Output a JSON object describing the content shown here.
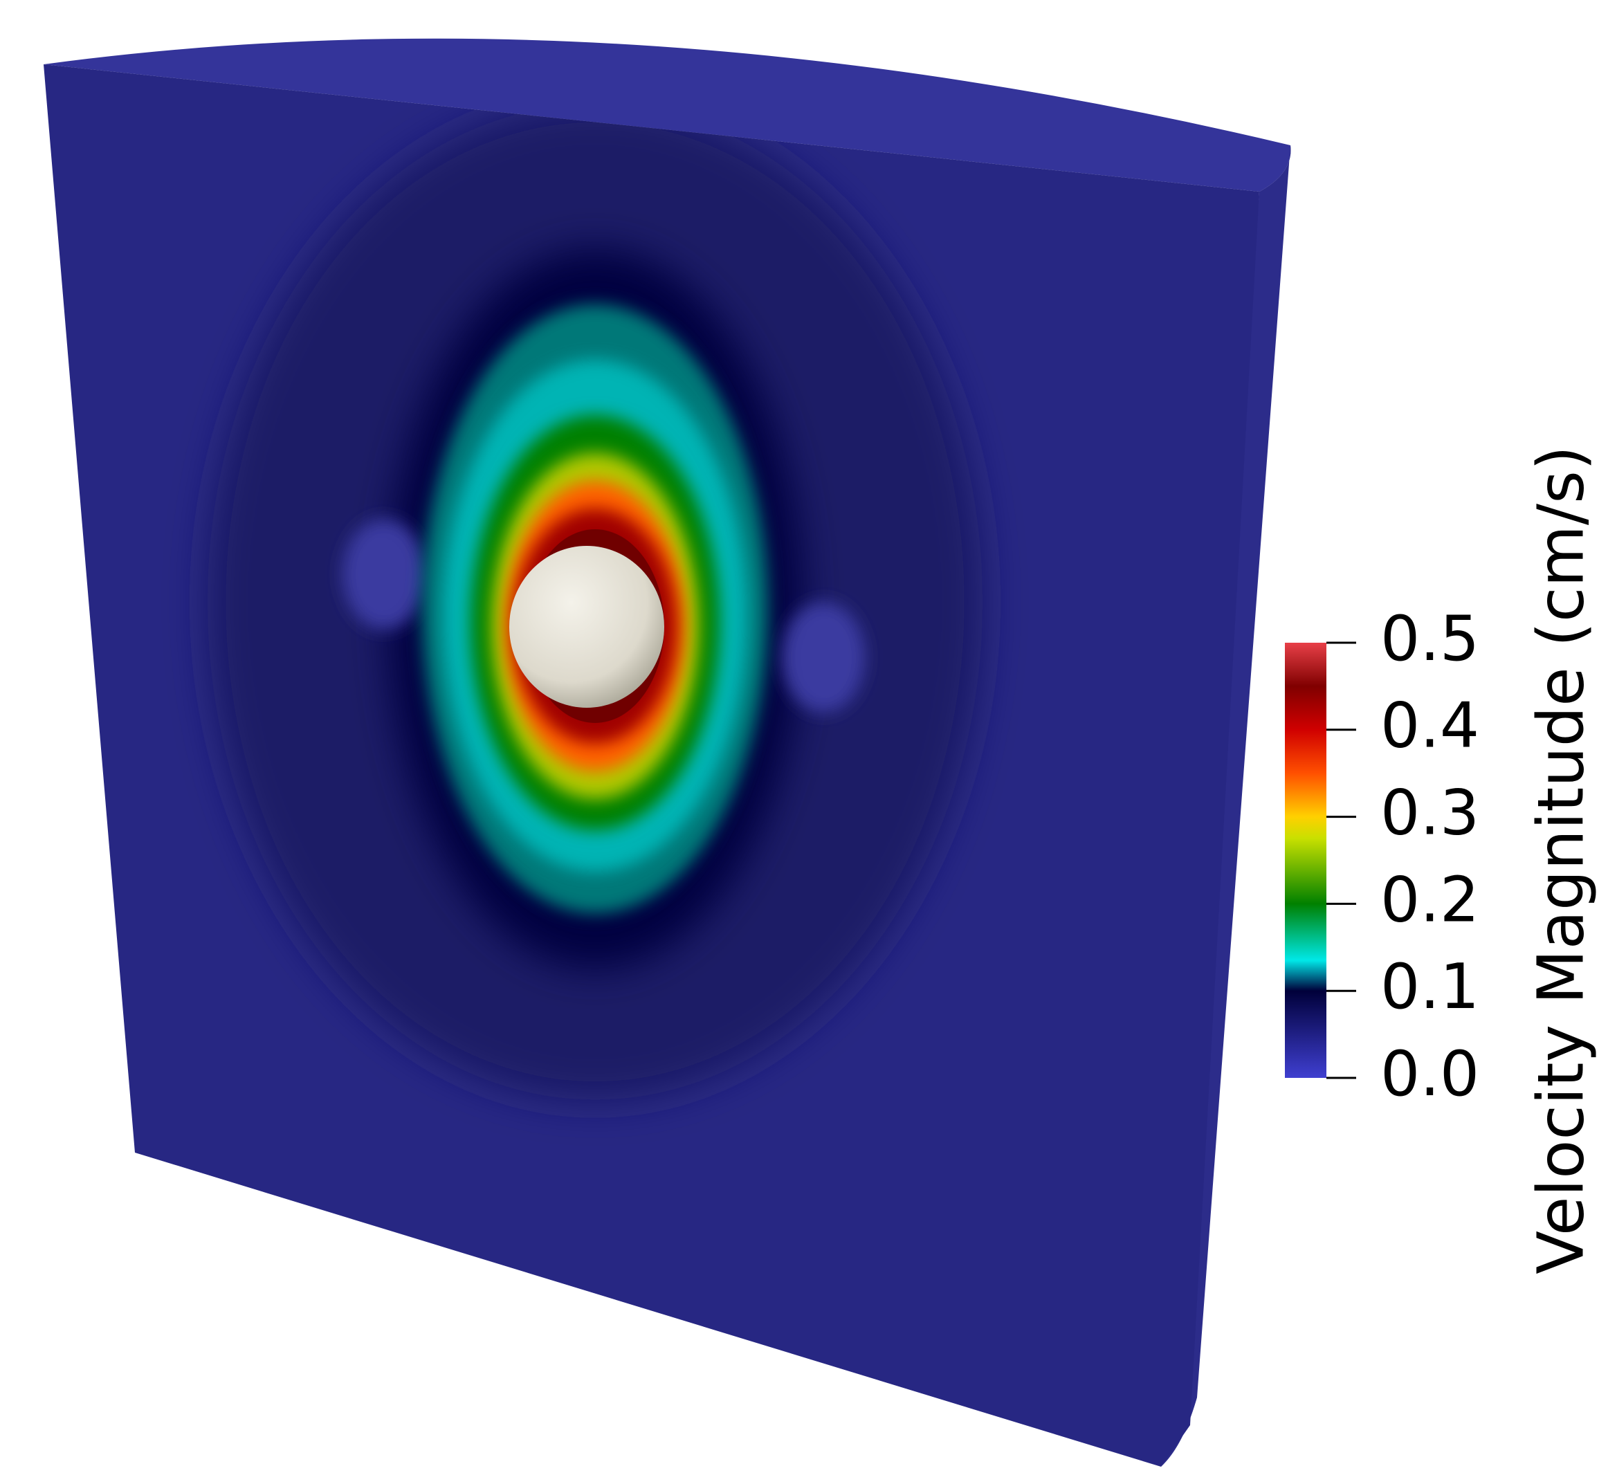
{
  "colorbar": {
    "title": "Velocity Magnitude (cm/s)",
    "range": [
      0,
      0.5
    ],
    "ticks": [
      {
        "value": 0,
        "label": "0.0"
      },
      {
        "value": 0.1,
        "label": "0.1"
      },
      {
        "value": 0.2,
        "label": "0.2"
      },
      {
        "value": 0.3,
        "label": "0.3"
      },
      {
        "value": 0.4,
        "label": "0.4"
      },
      {
        "value": 0.5,
        "label": "0.5"
      }
    ]
  }
}
